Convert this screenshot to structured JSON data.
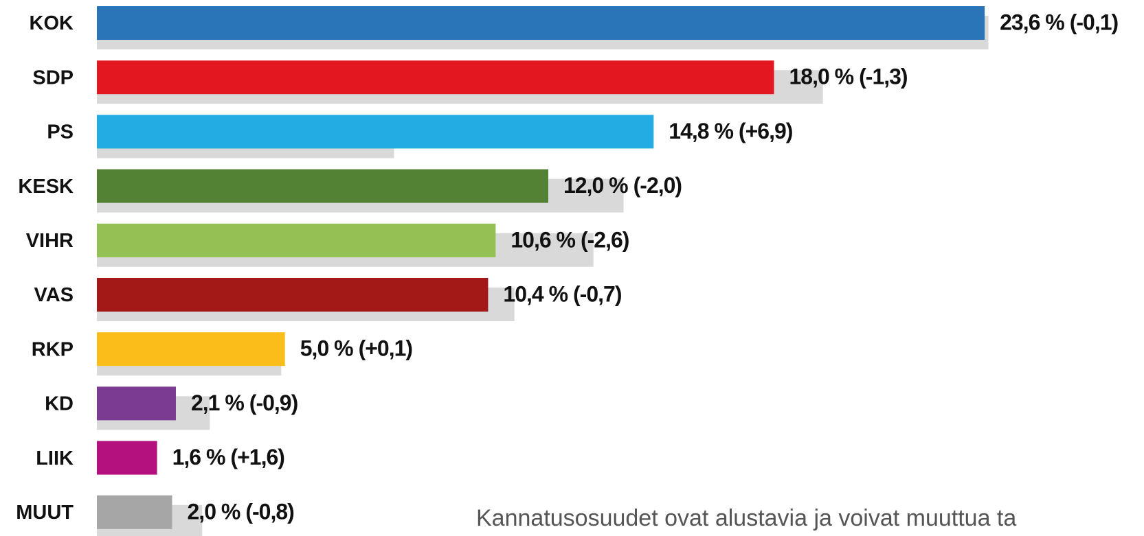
{
  "chart_data": {
    "type": "bar",
    "categories": [
      "KOK",
      "SDP",
      "PS",
      "KESK",
      "VIHR",
      "VAS",
      "RKP",
      "KD",
      "LIIK",
      "MUUT"
    ],
    "series": [
      {
        "values": [
          23.6,
          18.0,
          14.8,
          12.0,
          10.6,
          10.4,
          5.0,
          2.1,
          1.6,
          2.0
        ],
        "value_labels": [
          "23,6 %",
          "18,0 %",
          "14,8 %",
          "12,0 %",
          "10,6 %",
          "10,4 %",
          "5,0 %",
          "2,1 %",
          "1,6 %",
          "2,0 %"
        ],
        "change_labels": [
          "(-0,1)",
          "(-1,3)",
          "(+6,9)",
          "(-2,0)",
          "(-2,6)",
          "(-0,7)",
          "(+0,1)",
          "(-0,9)",
          "(+1,6)",
          "(-0,8)"
        ],
        "colors": [
          "#2a74b8",
          "#e3171f",
          "#22ace3",
          "#548235",
          "#93c154",
          "#a31918",
          "#fbbd19",
          "#7b3b92",
          "#b5117e",
          "#a6a6a6"
        ]
      },
      {
        "values": [
          23.7,
          19.3,
          7.9,
          14.0,
          13.2,
          11.1,
          4.9,
          3.0,
          0.0,
          2.8
        ],
        "color": "#d9d9d9"
      }
    ],
    "note": "Kannatusosuudet ovat alustavia ja voivat muuttua ta"
  }
}
